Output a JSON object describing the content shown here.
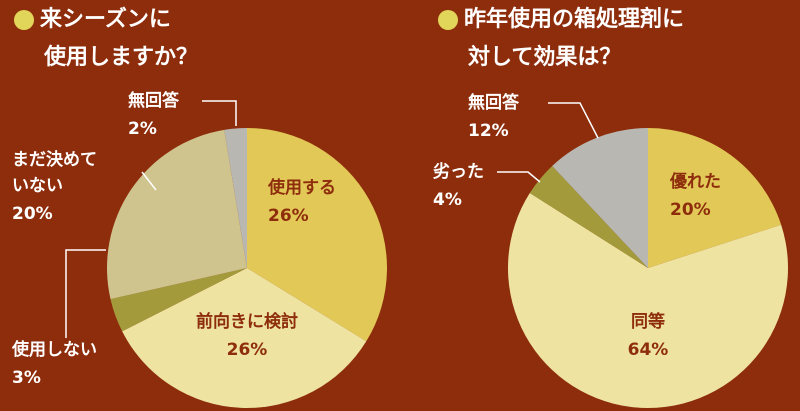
{
  "chart_data": [
    {
      "type": "pie",
      "title": [
        "来シーズンに",
        "使用しますか？"
      ],
      "categories": [
        [
          "使用する"
        ],
        [
          "前向きに検討"
        ],
        [
          "使用しない"
        ],
        [
          "まだ決めて",
          "いない"
        ],
        [
          "無回答"
        ]
      ],
      "values": [
        26,
        26,
        3,
        20,
        2
      ],
      "value_labels": [
        "26%",
        "26%",
        "3%",
        "20%",
        "2%"
      ],
      "colors": [
        "#e2c857",
        "#eee3a0",
        "#a39a3c",
        "#cfc48e",
        "#b8b7b2"
      ]
    },
    {
      "type": "pie",
      "title": [
        "昨年使用の箱処理剤に",
        "対して効果は？"
      ],
      "categories": [
        [
          "優れた"
        ],
        [
          "同等"
        ],
        [
          "劣った"
        ],
        [
          "無回答"
        ]
      ],
      "values": [
        20,
        64,
        4,
        12
      ],
      "value_labels": [
        "20%",
        "64%",
        "4%",
        "12%"
      ],
      "colors": [
        "#e2c857",
        "#eee3a0",
        "#a39a3c",
        "#b8b7b2"
      ]
    }
  ]
}
